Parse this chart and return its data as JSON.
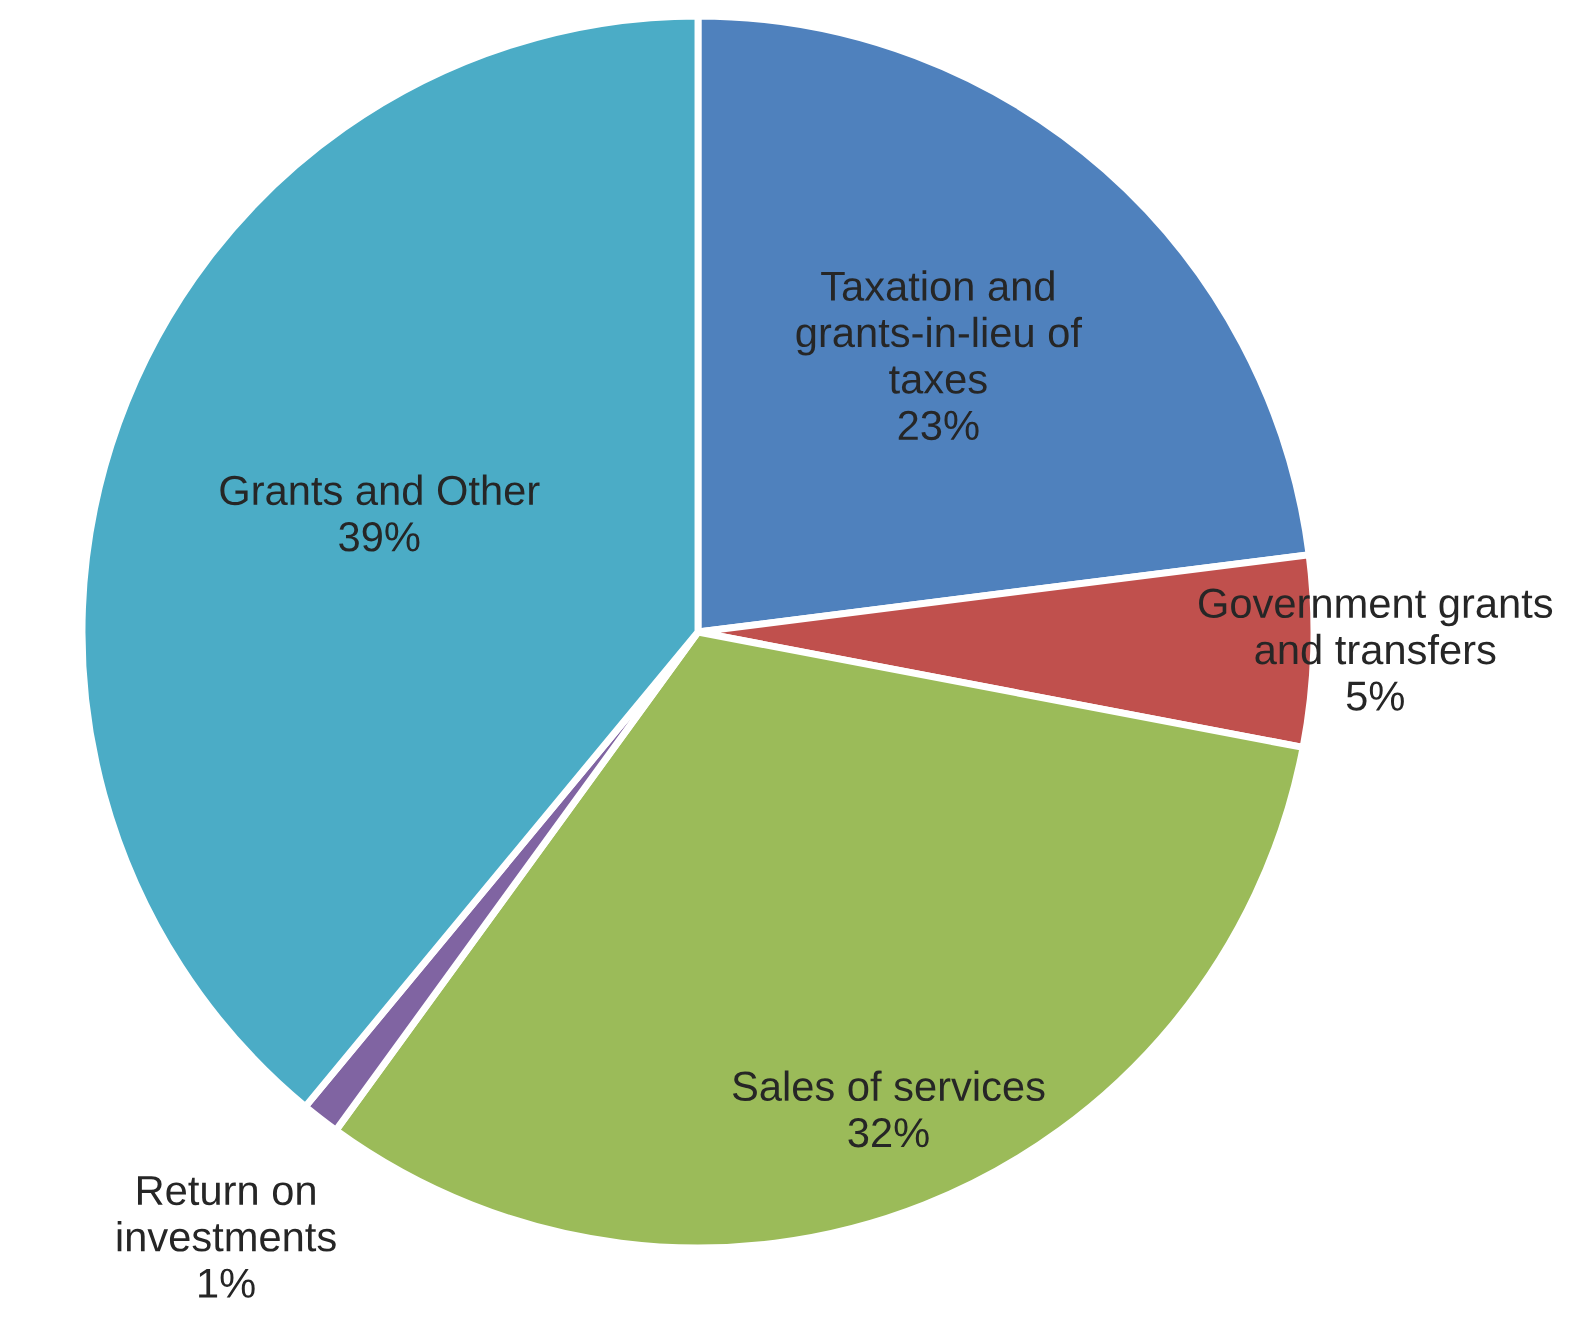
{
  "chart_data": {
    "type": "pie",
    "categories": [
      "Taxation and\ngrants-in-lieu of\ntaxes",
      "Government grants\nand transfers",
      "Sales of services",
      "Return on\ninvestments",
      "Grants and Other"
    ],
    "values": [
      23,
      5,
      32,
      1,
      39
    ],
    "value_labels": [
      "23%",
      "5%",
      "32%",
      "1%",
      "39%"
    ],
    "colors": [
      "#4f81bd",
      "#c0504d",
      "#9bbb59",
      "#8064a2",
      "#4bacc6"
    ],
    "legend": false
  }
}
